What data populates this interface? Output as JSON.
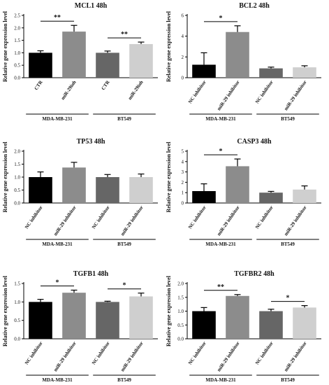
{
  "chart_data": [
    {
      "type": "bar",
      "title": "MCL1 48h",
      "ylabel": "Relative gene expression level",
      "ylim": [
        0,
        2.5
      ],
      "yticks": [
        "0.0",
        "0.5",
        "1.0",
        "1.5",
        "2.0",
        "2.5"
      ],
      "categories": [
        "CTR",
        "miR-29inh",
        "CTR",
        "miR-29inh"
      ],
      "values": [
        1.0,
        1.85,
        1.0,
        1.35
      ],
      "errors": [
        0.08,
        0.25,
        0.07,
        0.08
      ],
      "colors": [
        "#000000",
        "#8c8c8c",
        "#666666",
        "#cfcfcf"
      ],
      "groups": [
        "MDA-MB-231",
        "BT549"
      ],
      "significance": [
        "**",
        "**"
      ]
    },
    {
      "type": "bar",
      "title": "BCL2 48h",
      "ylabel": "Relative gene expression level",
      "ylim": [
        0,
        6
      ],
      "yticks": [
        "0",
        "2",
        "4",
        "6"
      ],
      "categories": [
        "NC inhibitor",
        "miR-29 inhibitor",
        "NC inhibitor",
        "miR-29 inhibitor"
      ],
      "values": [
        1.25,
        4.4,
        0.9,
        1.0
      ],
      "errors": [
        1.15,
        0.6,
        0.12,
        0.15
      ],
      "colors": [
        "#000000",
        "#8c8c8c",
        "#666666",
        "#cfcfcf"
      ],
      "groups": [
        "MDA-MB-231",
        "BT549"
      ],
      "significance": [
        "*",
        ""
      ]
    },
    {
      "type": "bar",
      "title": "TP53 48h",
      "ylabel": "Relative gene expression level",
      "ylim": [
        0,
        2.0
      ],
      "yticks": [
        "0.0",
        "0.5",
        "1.0",
        "1.5",
        "2.0"
      ],
      "categories": [
        "NC inhibitor",
        "miR-29 inhibitor",
        "NC inhibitor",
        "miR-29 inhibitor"
      ],
      "values": [
        1.0,
        1.37,
        1.0,
        1.0
      ],
      "errors": [
        0.2,
        0.2,
        0.1,
        0.12
      ],
      "colors": [
        "#000000",
        "#8c8c8c",
        "#666666",
        "#cfcfcf"
      ],
      "groups": [
        "MDA-MB-231",
        "BT549"
      ],
      "significance": [
        "",
        ""
      ]
    },
    {
      "type": "bar",
      "title": "CASP3 48h",
      "ylabel": "Relative gene expression level",
      "ylim": [
        0,
        5
      ],
      "yticks": [
        "0",
        "1",
        "2",
        "3",
        "4",
        "5"
      ],
      "categories": [
        "NC inhibitor",
        "miR-29 inhibitor",
        "NC inhibitor",
        "miR-29 inhibitor"
      ],
      "values": [
        1.15,
        3.55,
        1.0,
        1.3
      ],
      "errors": [
        0.7,
        0.7,
        0.12,
        0.35
      ],
      "colors": [
        "#000000",
        "#8c8c8c",
        "#666666",
        "#cfcfcf"
      ],
      "groups": [
        "MDA-MB-231",
        "BT549"
      ],
      "significance": [
        "*",
        ""
      ]
    },
    {
      "type": "bar",
      "title": "TGFB1 48h",
      "ylabel": "Relative gene expression level",
      "ylim": [
        0,
        1.5
      ],
      "yticks": [
        "0.0",
        "0.5",
        "1.0",
        "1.5"
      ],
      "categories": [
        "NC inhibitor",
        "miR-29 inhibitor",
        "NC inhibitor",
        "miR-29 inhibitor"
      ],
      "values": [
        1.0,
        1.25,
        1.0,
        1.15
      ],
      "errors": [
        0.07,
        0.07,
        0.02,
        0.09
      ],
      "colors": [
        "#000000",
        "#8c8c8c",
        "#666666",
        "#cfcfcf"
      ],
      "groups": [
        "MDA-MB-231",
        "BT549"
      ],
      "significance": [
        "*",
        "*"
      ]
    },
    {
      "type": "bar",
      "title": "TGFBR2 48h",
      "ylabel": "Relative gene expression level",
      "ylim": [
        0,
        2.0
      ],
      "yticks": [
        "0.0",
        "0.5",
        "1.0",
        "1.5",
        "2.0"
      ],
      "categories": [
        "NC inhibitor",
        "miR-29 inhibitor",
        "NC inhibitor",
        "miR-29 inhibitor"
      ],
      "values": [
        1.0,
        1.55,
        1.0,
        1.13
      ],
      "errors": [
        0.13,
        0.05,
        0.07,
        0.07
      ],
      "colors": [
        "#000000",
        "#8c8c8c",
        "#666666",
        "#cfcfcf"
      ],
      "groups": [
        "MDA-MB-231",
        "BT549"
      ],
      "significance": [
        "**",
        "*"
      ]
    }
  ]
}
